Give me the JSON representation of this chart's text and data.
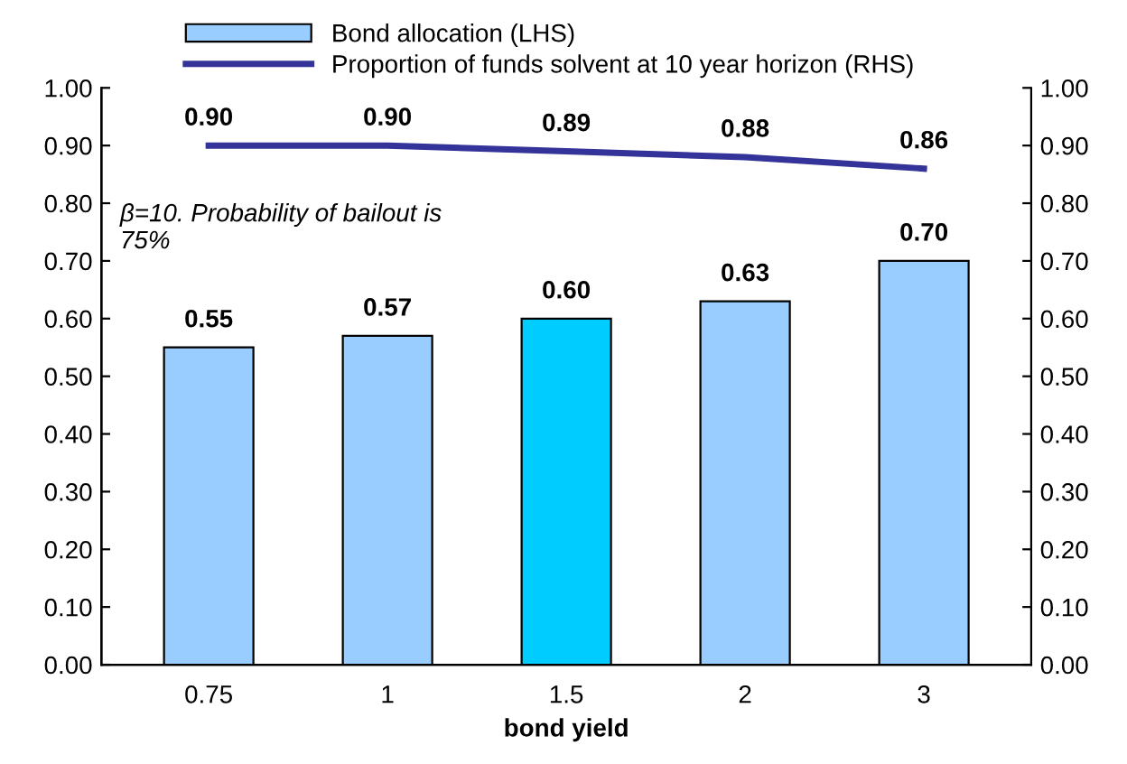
{
  "chart_data": {
    "type": "bar",
    "xlabel": "bond yield",
    "categories": [
      "0.75",
      "1",
      "1.5",
      "2",
      "3"
    ],
    "series": [
      {
        "name": "Bond allocation (LHS)",
        "colors": [
          "#99ccff",
          "#99ccff",
          "#00ccff",
          "#99ccff",
          "#99ccff"
        ],
        "values": [
          0.55,
          0.57,
          0.6,
          0.63,
          0.7
        ],
        "value_labels": [
          "0.55",
          "0.57",
          "0.60",
          "0.63",
          "0.70"
        ]
      },
      {
        "name": "Proportion of funds solvent at 10 year horizon (RHS)",
        "type": "line",
        "axis": "y2",
        "color": "#333399",
        "values": [
          0.9,
          0.9,
          0.89,
          0.88,
          0.86
        ],
        "value_labels": [
          "0.90",
          "0.90",
          "0.89",
          "0.88",
          "0.86"
        ],
        "marker": "none",
        "line_style": "solid"
      }
    ],
    "ylim": [
      0,
      1
    ],
    "yticks": [
      {
        "value": 0,
        "label": "0.00"
      },
      {
        "value": 0.1,
        "label": "0.10"
      },
      {
        "value": 0.2,
        "label": "0.20"
      },
      {
        "value": 0.3,
        "label": "0.30"
      },
      {
        "value": 0.4,
        "label": "0.40"
      },
      {
        "value": 0.5,
        "label": "0.50"
      },
      {
        "value": 0.6,
        "label": "0.60"
      },
      {
        "value": 0.7,
        "label": "0.70"
      },
      {
        "value": 0.8,
        "label": "0.80"
      },
      {
        "value": 0.9,
        "label": "0.90"
      },
      {
        "value": 1,
        "label": "1.00"
      }
    ],
    "y2lim": [
      0,
      1
    ],
    "y2ticks": [
      {
        "value": 0,
        "label": "0.00"
      },
      {
        "value": 0.1,
        "label": "0.10"
      },
      {
        "value": 0.2,
        "label": "0.20"
      },
      {
        "value": 0.3,
        "label": "0.30"
      },
      {
        "value": 0.4,
        "label": "0.40"
      },
      {
        "value": 0.5,
        "label": "0.50"
      },
      {
        "value": 0.6,
        "label": "0.60"
      },
      {
        "value": 0.7,
        "label": "0.70"
      },
      {
        "value": 0.8,
        "label": "0.80"
      },
      {
        "value": 0.9,
        "label": "0.90"
      },
      {
        "value": 1,
        "label": "1.00"
      }
    ],
    "annotations": [
      "β=10. Probability of bailout is\n75%"
    ],
    "legend": "top",
    "grid": false
  }
}
